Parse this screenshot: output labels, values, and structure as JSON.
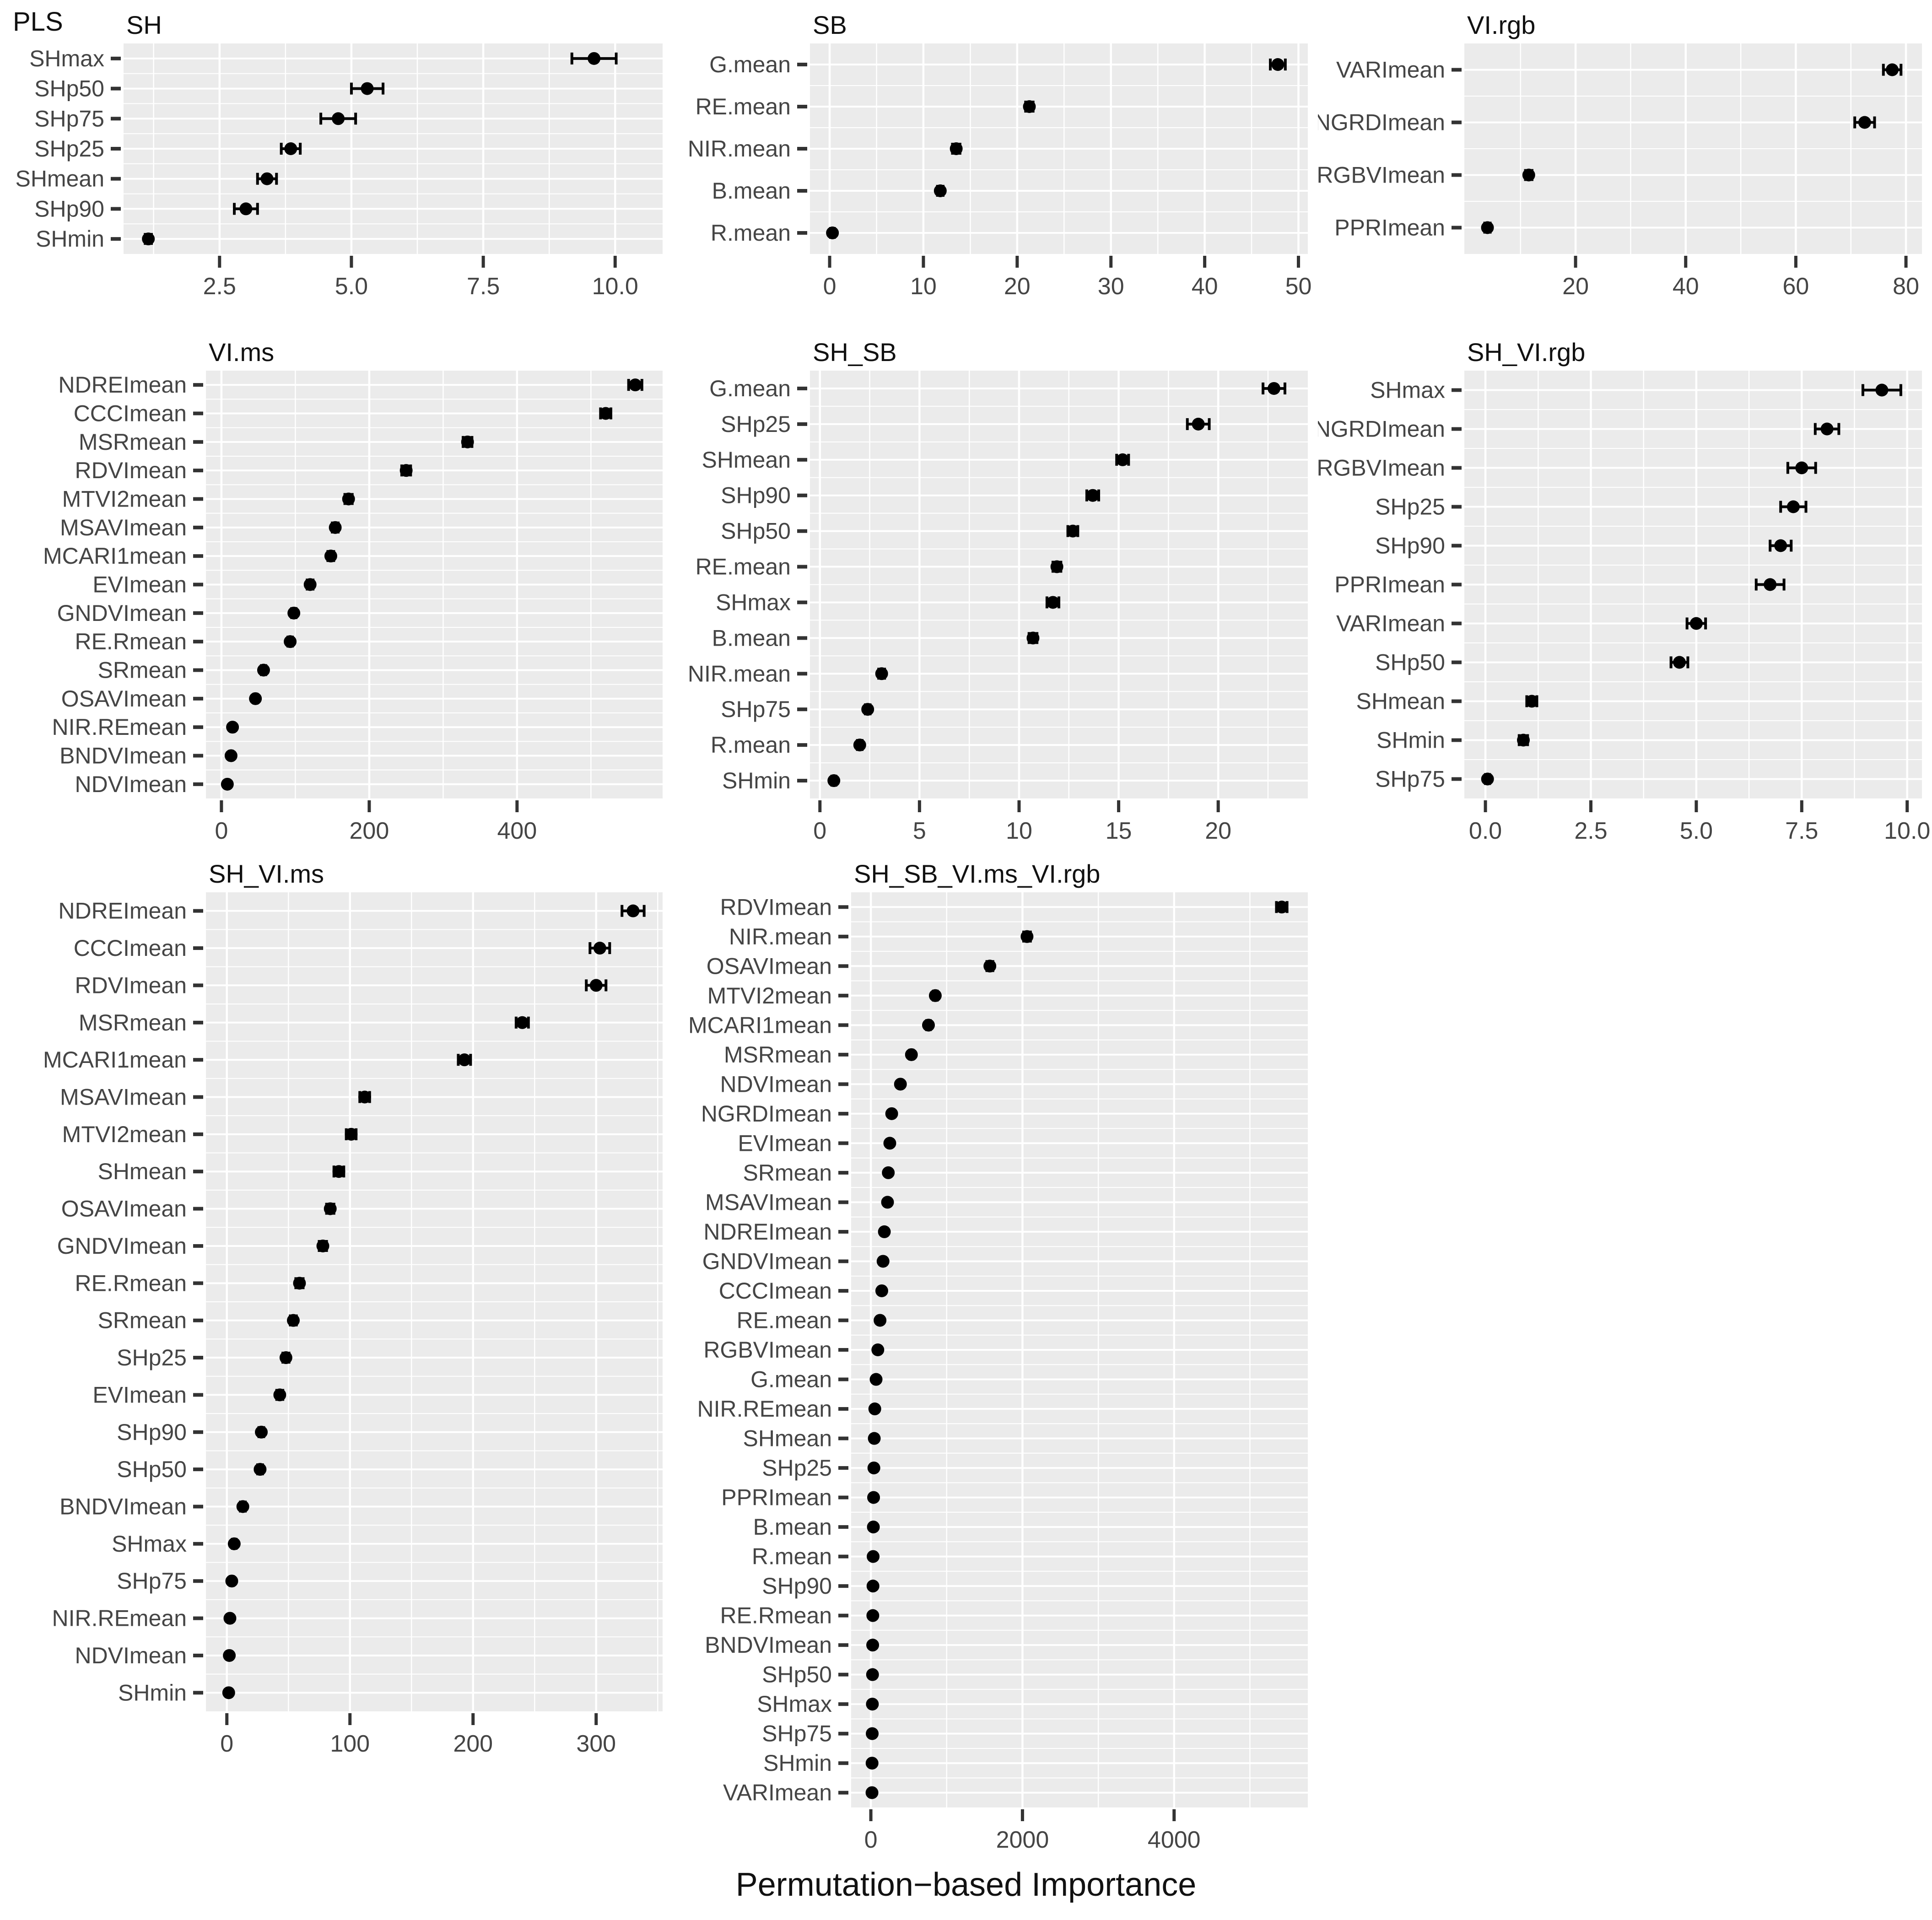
{
  "figure": {
    "tag": "PLS",
    "x_axis_title": "Permutation−based Importance"
  },
  "colors": {
    "panel_bg": "#EBEBEB",
    "grid": "#FFFFFF",
    "point": "#000000",
    "tick_text": "#454545",
    "strip_text": "#111111",
    "tick_mark": "#333333"
  },
  "chart_data": [
    {
      "type": "scatter",
      "title": "SH",
      "x_range": [
        0.68,
        10.9
      ],
      "x_ticks": [
        2.5,
        5.0,
        7.5,
        10.0
      ],
      "x_tick_labels": [
        "2.5",
        "5.0",
        "7.5",
        "10.0"
      ],
      "categories": [
        "SHmax",
        "SHp50",
        "SHp75",
        "SHp25",
        "SHmean",
        "SHp90",
        "SHmin"
      ],
      "values": [
        9.6,
        5.3,
        4.75,
        3.85,
        3.4,
        3.0,
        1.15
      ],
      "errors": [
        0.42,
        0.3,
        0.33,
        0.18,
        0.18,
        0.22,
        0.06
      ]
    },
    {
      "type": "scatter",
      "title": "SB",
      "x_range": [
        -2.1,
        51.0
      ],
      "x_ticks": [
        0,
        10,
        20,
        30,
        40,
        50
      ],
      "x_tick_labels": [
        "0",
        "10",
        "20",
        "30",
        "40",
        "50"
      ],
      "categories": [
        "G.mean",
        "RE.mean",
        "NIR.mean",
        "B.mean",
        "R.mean"
      ],
      "values": [
        47.8,
        21.3,
        13.5,
        11.8,
        0.3
      ],
      "errors": [
        0.8,
        0.4,
        0.4,
        0.3,
        0.2
      ]
    },
    {
      "type": "scatter",
      "title": "VI.rgb",
      "x_range": [
        -0.2,
        82.9
      ],
      "x_ticks": [
        20,
        40,
        60,
        80
      ],
      "x_tick_labels": [
        "20",
        "40",
        "60",
        "80"
      ],
      "categories": [
        "VARImean",
        "NGRDImean",
        "RGBVImean",
        "PPRImean"
      ],
      "values": [
        77.5,
        72.5,
        11.5,
        4.0
      ],
      "errors": [
        1.6,
        1.8,
        0.6,
        0.5
      ]
    },
    {
      "type": "scatter",
      "title": "VI.ms",
      "x_range": [
        -21,
        597
      ],
      "x_ticks": [
        0,
        200,
        400
      ],
      "x_tick_labels": [
        "0",
        "200",
        "400"
      ],
      "categories": [
        "NDREImean",
        "CCCImean",
        "MSRmean",
        "RDVImean",
        "MTVI2mean",
        "MSAVImean",
        "MCARI1mean",
        "EVImean",
        "GNDVImean",
        "RE.Rmean",
        "SRmean",
        "OSAVImean",
        "NIR.REmean",
        "BNDVImean",
        "NDVImean"
      ],
      "values": [
        560,
        520,
        333,
        250,
        172,
        154,
        148,
        120,
        98,
        93,
        57,
        46,
        15,
        13,
        8
      ],
      "errors": [
        9,
        7,
        6,
        6,
        5,
        4,
        4,
        4,
        3,
        3,
        3,
        2,
        2,
        2,
        1.5
      ]
    },
    {
      "type": "scatter",
      "title": "SH_SB",
      "x_range": [
        -0.5,
        24.5
      ],
      "x_ticks": [
        0,
        5,
        10,
        15,
        20
      ],
      "x_tick_labels": [
        "0",
        "5",
        "10",
        "15",
        "20"
      ],
      "categories": [
        "G.mean",
        "SHp25",
        "SHmean",
        "SHp90",
        "SHp50",
        "RE.mean",
        "SHmax",
        "B.mean",
        "NIR.mean",
        "SHp75",
        "R.mean",
        "SHmin"
      ],
      "values": [
        22.8,
        19.0,
        15.2,
        13.7,
        12.7,
        11.9,
        11.7,
        10.7,
        3.1,
        2.4,
        2.0,
        0.7
      ],
      "errors": [
        0.55,
        0.55,
        0.3,
        0.3,
        0.25,
        0.2,
        0.3,
        0.2,
        0.15,
        0.12,
        0.12,
        0.1
      ]
    },
    {
      "type": "scatter",
      "title": "SH_VI.rgb",
      "x_range": [
        -0.5,
        10.35
      ],
      "x_ticks": [
        0.0,
        2.5,
        5.0,
        7.5,
        10.0
      ],
      "x_tick_labels": [
        "0.0",
        "2.5",
        "5.0",
        "7.5",
        "10.0"
      ],
      "categories": [
        "SHmax",
        "NGRDImean",
        "RGBVImean",
        "SHp25",
        "SHp90",
        "PPRImean",
        "VARImean",
        "SHp50",
        "SHmean",
        "SHmin",
        "SHp75"
      ],
      "values": [
        9.4,
        8.1,
        7.5,
        7.3,
        7.0,
        6.75,
        5.0,
        4.6,
        1.1,
        0.9,
        0.05
      ],
      "errors": [
        0.45,
        0.28,
        0.33,
        0.3,
        0.25,
        0.33,
        0.22,
        0.2,
        0.12,
        0.1,
        0.05
      ]
    },
    {
      "type": "scatter",
      "title": "SH_VI.ms",
      "x_range": [
        -17,
        354
      ],
      "x_ticks": [
        0,
        100,
        200,
        300
      ],
      "x_tick_labels": [
        "0",
        "100",
        "200",
        "300"
      ],
      "categories": [
        "NDREImean",
        "CCCImean",
        "RDVImean",
        "MSRmean",
        "MCARI1mean",
        "MSAVImean",
        "MTVI2mean",
        "SHmean",
        "OSAVImean",
        "GNDVImean",
        "RE.Rmean",
        "SRmean",
        "SHp25",
        "EVImean",
        "SHp90",
        "SHp50",
        "BNDVImean",
        "SHmax",
        "SHp75",
        "NIR.REmean",
        "NDVImean",
        "SHmin"
      ],
      "values": [
        330,
        303,
        300,
        240,
        193,
        112,
        101,
        91,
        84,
        78,
        59,
        54,
        48,
        43,
        28,
        27,
        13,
        6,
        4,
        2.5,
        2,
        1.5
      ],
      "errors": [
        9,
        8,
        8,
        5,
        5,
        4,
        4,
        4,
        3,
        3,
        3,
        2.5,
        2.5,
        2.5,
        2,
        2,
        2,
        1.5,
        1.2,
        1,
        1,
        0.8
      ]
    },
    {
      "type": "scatter",
      "title": "SH_SB_VI.ms_VI.rgb",
      "x_range": [
        -260,
        5764
      ],
      "x_ticks": [
        0,
        2000,
        4000
      ],
      "x_tick_labels": [
        "0",
        "2000",
        "4000"
      ],
      "categories": [
        "RDVImean",
        "NIR.mean",
        "OSAVImean",
        "MTVI2mean",
        "MCARI1mean",
        "MSRmean",
        "NDVImean",
        "NGRDImean",
        "EVImean",
        "SRmean",
        "MSAVImean",
        "NDREImean",
        "GNDVImean",
        "CCCImean",
        "RE.mean",
        "RGBVImean",
        "G.mean",
        "NIR.REmean",
        "SHmean",
        "SHp25",
        "PPRImean",
        "B.mean",
        "R.mean",
        "SHp90",
        "RE.Rmean",
        "BNDVImean",
        "SHp50",
        "SHmax",
        "SHp75",
        "SHmin",
        "VARImean"
      ],
      "values": [
        5420,
        2060,
        1570,
        850,
        760,
        535,
        390,
        275,
        250,
        230,
        220,
        178,
        161,
        144,
        121,
        92,
        69,
        52,
        45,
        40,
        36,
        33,
        30,
        28,
        26,
        24,
        22,
        20,
        18,
        16,
        15
      ],
      "errors": [
        70,
        45,
        40,
        25,
        25,
        20,
        15,
        12,
        12,
        12,
        12,
        10,
        10,
        10,
        10,
        8,
        8,
        8,
        8,
        8,
        8,
        8,
        8,
        8,
        8,
        8,
        8,
        8,
        8,
        8,
        8
      ]
    }
  ]
}
